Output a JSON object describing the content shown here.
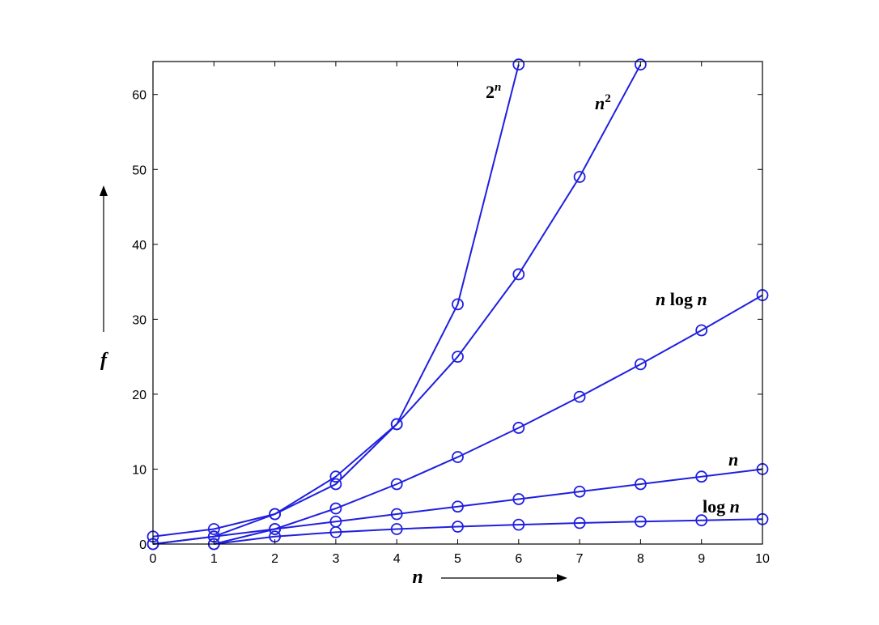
{
  "chart_data": {
    "type": "line",
    "title": "",
    "xlabel": "n",
    "ylabel": "f",
    "xlim": [
      0,
      10
    ],
    "ylim": [
      0,
      64
    ],
    "xticks": [
      0,
      1,
      2,
      3,
      4,
      5,
      6,
      7,
      8,
      9,
      10
    ],
    "yticks": [
      0,
      10,
      20,
      30,
      40,
      50,
      60
    ],
    "grid": false,
    "color": "#1f1fe0",
    "series": [
      {
        "label_parts": [
          {
            "text": "log ",
            "italic": false
          },
          {
            "text": "n",
            "italic": true
          }
        ],
        "x": [
          1,
          2,
          3,
          4,
          5,
          6,
          7,
          8,
          9,
          10
        ],
        "values": [
          0,
          1,
          1.58,
          2,
          2.32,
          2.58,
          2.81,
          3,
          3.17,
          3.32
        ]
      },
      {
        "label_parts": [
          {
            "text": "n",
            "italic": true
          }
        ],
        "x": [
          0,
          1,
          2,
          3,
          4,
          5,
          6,
          7,
          8,
          9,
          10
        ],
        "values": [
          0,
          1,
          2,
          3,
          4,
          5,
          6,
          7,
          8,
          9,
          10
        ]
      },
      {
        "label_parts": [
          {
            "text": "n",
            "italic": true
          },
          {
            "text": " log ",
            "italic": false
          },
          {
            "text": "n",
            "italic": true
          }
        ],
        "x": [
          1,
          2,
          3,
          4,
          5,
          6,
          7,
          8,
          9,
          10
        ],
        "values": [
          0,
          2,
          4.75,
          8,
          11.61,
          15.51,
          19.65,
          24,
          28.53,
          33.22
        ]
      },
      {
        "label_parts": [
          {
            "text": "n",
            "italic": true
          },
          {
            "text": "2",
            "italic": false,
            "sup": true
          }
        ],
        "x": [
          0,
          1,
          2,
          3,
          4,
          5,
          6,
          7,
          8
        ],
        "values": [
          0,
          1,
          4,
          9,
          16,
          25,
          36,
          49,
          64
        ]
      },
      {
        "label_parts": [
          {
            "text": "2",
            "italic": false
          },
          {
            "text": "n",
            "italic": true,
            "sup": true
          }
        ],
        "x": [
          0,
          1,
          2,
          3,
          4,
          5,
          6
        ],
        "values": [
          1,
          2,
          4,
          8,
          16,
          32,
          64
        ]
      }
    ]
  }
}
